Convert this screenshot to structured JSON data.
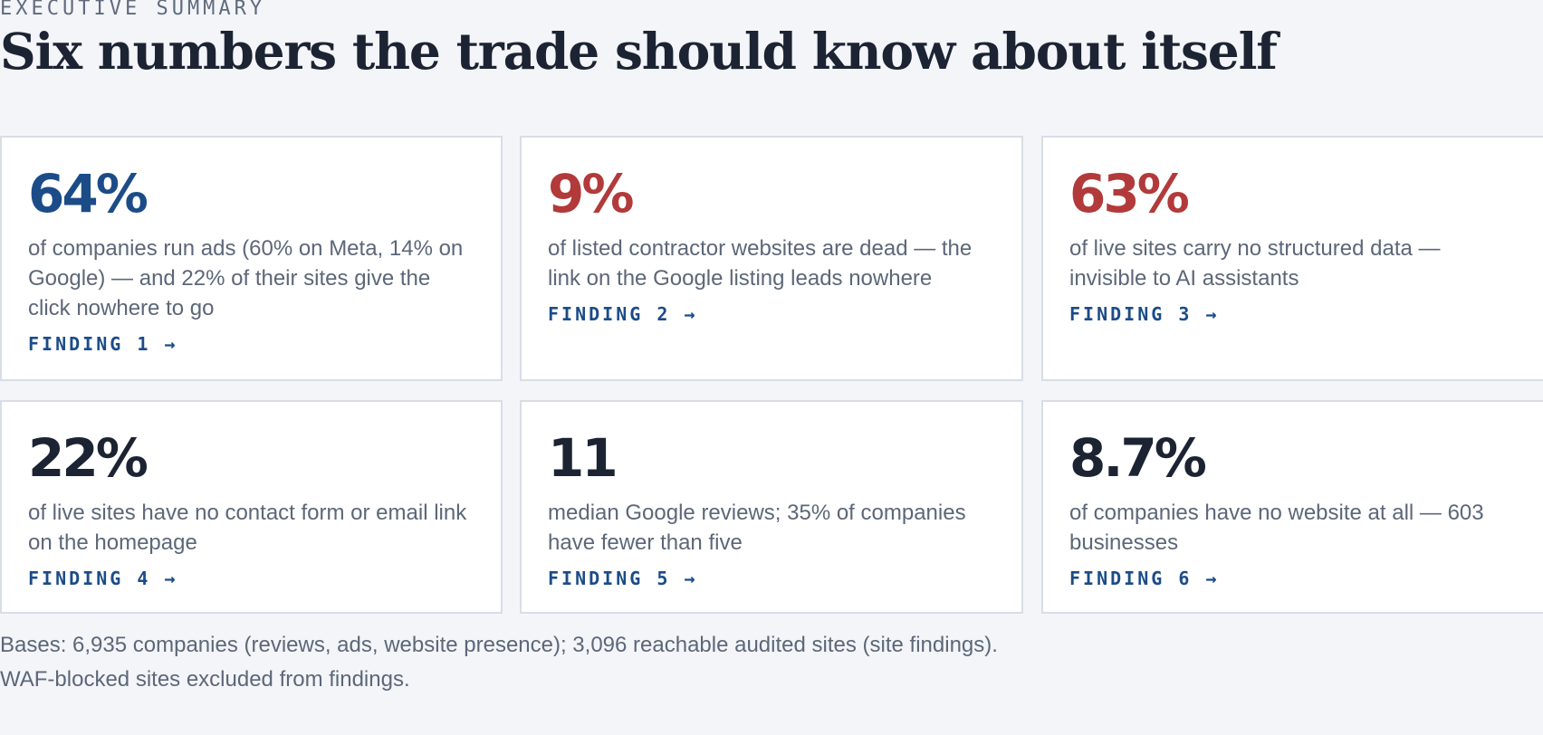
{
  "header": {
    "eyebrow": "EXECUTIVE SUMMARY",
    "title": "Six numbers the trade should know about itself"
  },
  "colors": {
    "accent_blue": "#1b4c88",
    "alert_red": "#b23a3a",
    "dark": "#1c2433",
    "muted_text": "#5c6778",
    "background": "#f4f5f9"
  },
  "cards": [
    {
      "stat": "64%",
      "stat_color": "blue",
      "description": "of companies run ads (60% on Meta, 14% on Google) — and 22% of their sites give the click nowhere to go",
      "link_label": "FINDING 1 →"
    },
    {
      "stat": "9%",
      "stat_color": "red",
      "description": "of listed contractor websites are dead — the link on the Google listing leads nowhere",
      "link_label": "FINDING 2 →"
    },
    {
      "stat": "63%",
      "stat_color": "red",
      "description": "of live sites carry no structured data — invisible to AI assistants",
      "link_label": "FINDING 3 →"
    },
    {
      "stat": "22%",
      "stat_color": "dark",
      "description": "of live sites have no contact form or email link on the homepage",
      "link_label": "FINDING 4 →"
    },
    {
      "stat": "11",
      "stat_color": "dark",
      "description": "median Google reviews; 35% of companies have fewer than five",
      "link_label": "FINDING 5 →"
    },
    {
      "stat": "8.7%",
      "stat_color": "dark",
      "description": "of companies have no website at all — 603 businesses",
      "link_label": "FINDING 6 →"
    }
  ],
  "footnote": "Bases: 6,935 companies (reviews, ads, website presence); 3,096 reachable audited sites (site findings). WAF-blocked sites excluded from findings."
}
